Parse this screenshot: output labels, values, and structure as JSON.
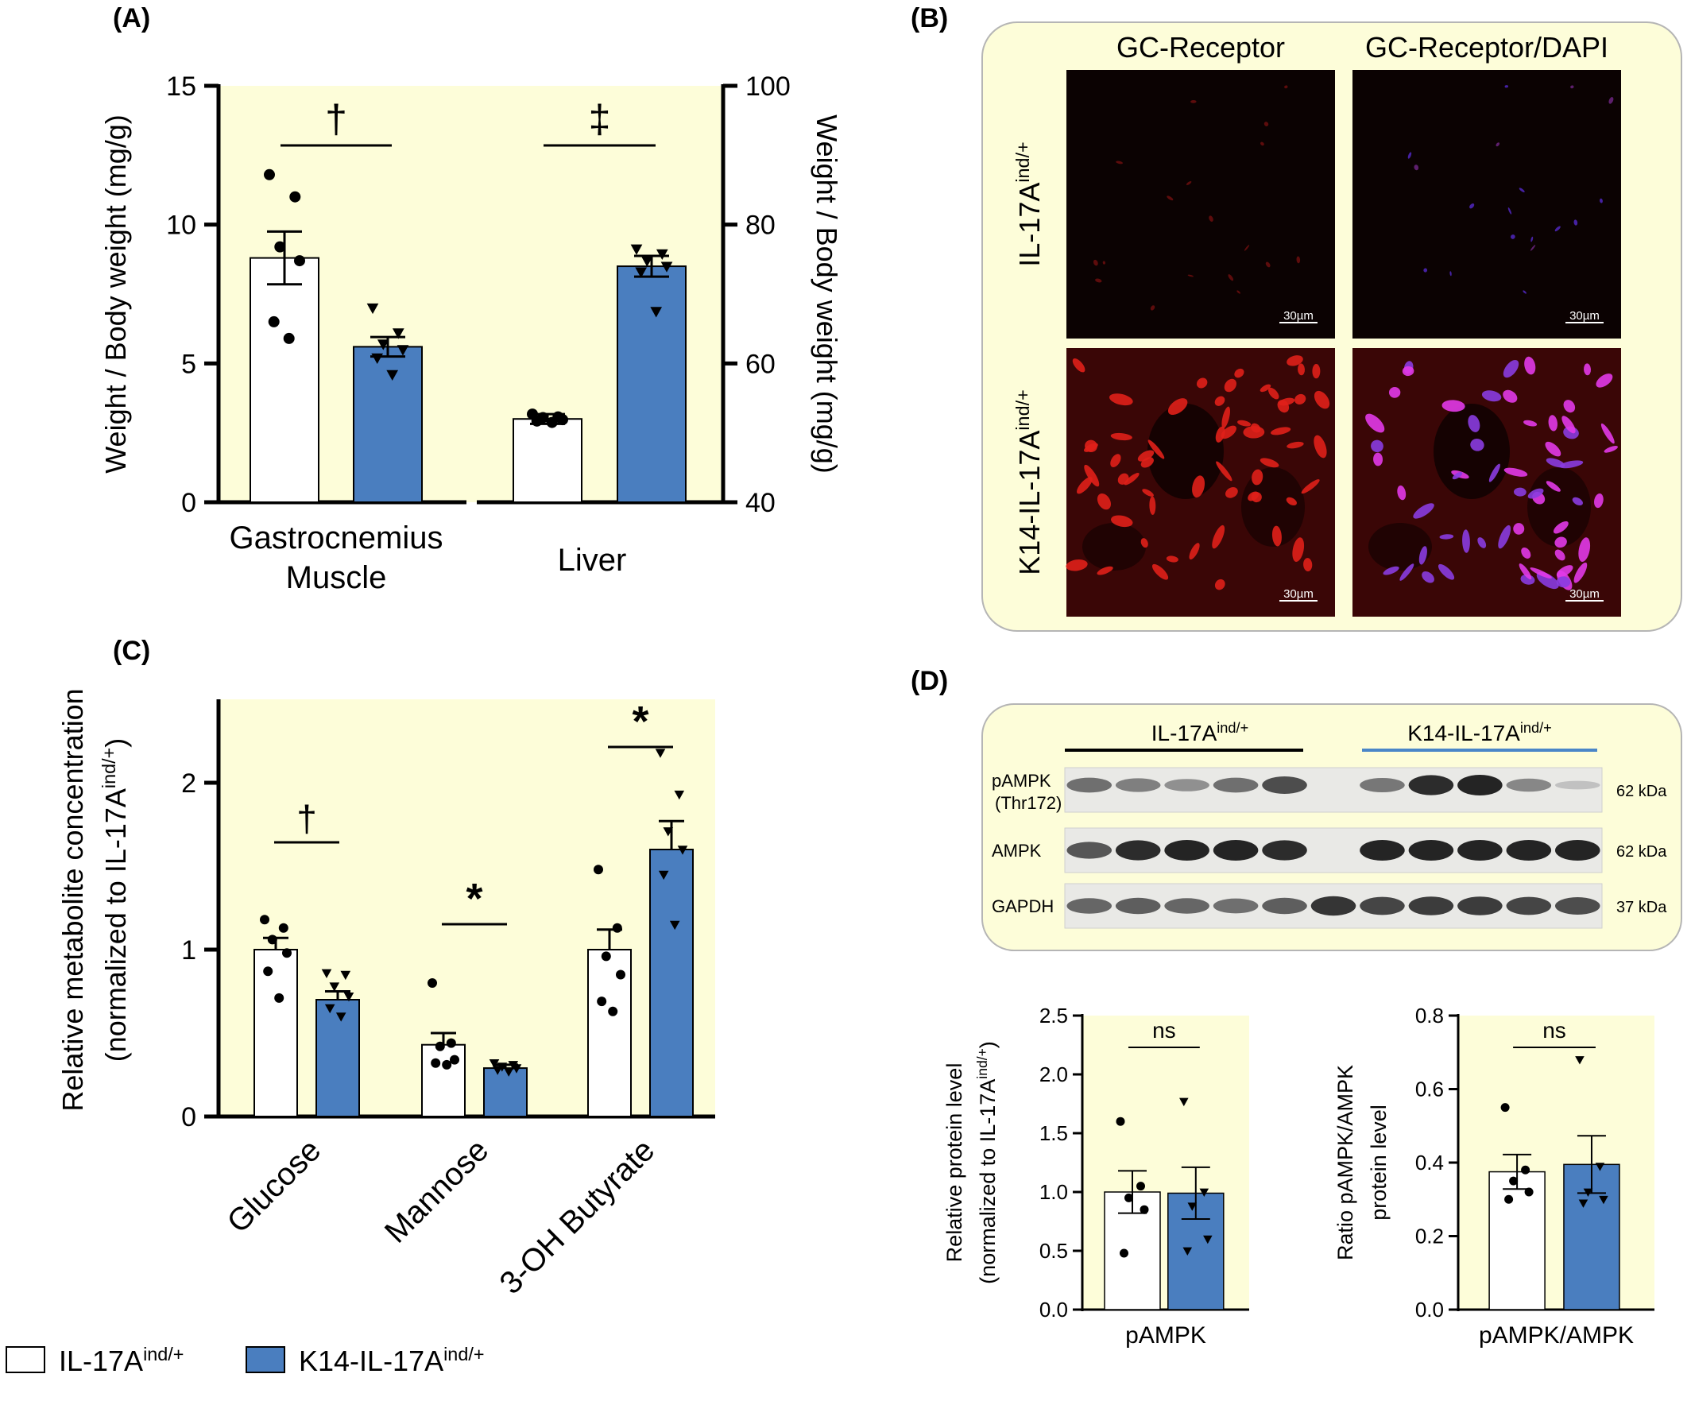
{
  "panels": {
    "a": "(A)",
    "b": "(B)",
    "c": "(C)",
    "d": "(D)"
  },
  "colors": {
    "panel_bg": "#fdfdd9",
    "blue_bar": "#4a7ebf",
    "white_bar": "#ffffff",
    "ko_line": "#000000",
    "tg_line": "#4a86c8"
  },
  "legend": [
    {
      "label": "IL-17A",
      "sup": "ind/+",
      "color": "#ffffff"
    },
    {
      "label": "K14-IL-17A",
      "sup": "ind/+",
      "color": "#4a7ebf"
    }
  ],
  "panel_b": {
    "col_titles": [
      "GC-Receptor",
      "GC-Receptor/DAPI"
    ],
    "row_labels": [
      {
        "main": "IL-17A",
        "sup": "ind/+"
      },
      {
        "main": "K14-IL-17A",
        "sup": "ind/+"
      }
    ],
    "scalebar": "30µm"
  },
  "panel_d_blot": {
    "group_labels": [
      {
        "main": "IL-17A",
        "sup": "ind/+"
      },
      {
        "main": "K14-IL-17A",
        "sup": "ind/+"
      }
    ],
    "rows": [
      {
        "label1": "pAMPK",
        "label2": "(Thr172)",
        "kda": "62 kDa",
        "bands": [
          0.55,
          0.45,
          0.35,
          0.55,
          0.75,
          0.0,
          0.5,
          0.95,
          1.0,
          0.4,
          0.05
        ]
      },
      {
        "label1": "AMPK",
        "label2": "",
        "kda": "62 kDa",
        "bands": [
          0.7,
          0.95,
          1.0,
          1.0,
          0.95,
          0.0,
          1.0,
          1.0,
          1.0,
          1.0,
          1.0
        ]
      },
      {
        "label1": "GAPDH",
        "label2": "",
        "kda": "37 kDa",
        "bands": [
          0.6,
          0.65,
          0.6,
          0.55,
          0.65,
          0.9,
          0.8,
          0.85,
          0.85,
          0.8,
          0.75
        ]
      }
    ]
  },
  "chart_data": [
    {
      "id": "A",
      "type": "bar",
      "ylabel_left": "Weight / Body weight  (mg/g)",
      "ylabel_right": "Weight / Body weight  (mg/g)",
      "ylim_left": [
        0,
        15
      ],
      "yticks_left": [
        0,
        5,
        10,
        15
      ],
      "ylim_right": [
        40,
        100
      ],
      "yticks_right": [
        40,
        60,
        80,
        100
      ],
      "categories": [
        {
          "label": [
            "Gastrocnemius",
            "Muscle"
          ],
          "axis": "left",
          "sig": "†",
          "values": [
            8.8,
            5.6
          ],
          "sem": [
            0.95,
            0.35
          ],
          "points": [
            [
              11.8,
              11.0,
              9.2,
              8.7,
              6.5,
              5.9
            ],
            [
              7.0,
              6.1,
              5.7,
              5.5,
              5.2,
              4.6
            ]
          ]
        },
        {
          "label": [
            "Liver"
          ],
          "axis": "right",
          "sig": "‡",
          "values": [
            52.0,
            74.0
          ],
          "sem": [
            0.7,
            1.5
          ],
          "points": [
            [
              52.7,
              52.3,
              52.2,
              51.9,
              51.7,
              51.5
            ],
            [
              76.5,
              75.8,
              74.8,
              74.0,
              73.2,
              67.5
            ]
          ]
        }
      ]
    },
    {
      "id": "C",
      "type": "bar",
      "ylabel": "Relative metabolite concentration",
      "ylabel2": "(normalized to IL-17A",
      "ylabel2_sup": "ind/+",
      "ylabel2_end": ")",
      "ylim": [
        0,
        2.5
      ],
      "yticks": [
        0,
        1,
        2
      ],
      "categories": [
        {
          "label": "Glucose",
          "sig": "†",
          "values": [
            1.0,
            0.7
          ],
          "sem": [
            0.07,
            0.05
          ],
          "points": [
            [
              1.18,
              1.13,
              1.06,
              0.98,
              0.87,
              0.71
            ],
            [
              0.86,
              0.85,
              0.78,
              0.72,
              0.65,
              0.6
            ]
          ]
        },
        {
          "label": "Mannose",
          "sig": "*",
          "values": [
            0.43,
            0.29
          ],
          "sem": [
            0.07,
            0.02
          ],
          "points": [
            [
              0.8,
              0.44,
              0.42,
              0.34,
              0.32,
              0.31
            ],
            [
              0.32,
              0.31,
              0.3,
              0.29,
              0.28,
              0.27
            ]
          ]
        },
        {
          "label": "3-OH Butyrate",
          "sig": "*",
          "values": [
            1.0,
            1.6
          ],
          "sem": [
            0.12,
            0.17
          ],
          "points": [
            [
              1.48,
              1.13,
              0.96,
              0.85,
              0.69,
              0.63
            ],
            [
              2.18,
              1.93,
              1.71,
              1.6,
              1.45,
              1.15
            ]
          ]
        }
      ]
    },
    {
      "id": "D1",
      "type": "bar",
      "ylabel": "Relative protein level",
      "ylabel2": "(normalized to IL-17A",
      "ylabel2_sup": "ind/+",
      "ylabel2_end": ")",
      "ylim": [
        0,
        2.5
      ],
      "yticks": [
        0.0,
        0.5,
        1.0,
        1.5,
        2.0,
        2.5
      ],
      "xlabel": "pAMPK",
      "sig": "ns",
      "values": [
        1.0,
        0.99
      ],
      "sem": [
        0.18,
        0.22
      ],
      "points": [
        [
          1.6,
          1.05,
          0.95,
          0.85,
          0.48
        ],
        [
          1.77,
          1.0,
          0.88,
          0.6,
          0.5
        ]
      ]
    },
    {
      "id": "D2",
      "type": "bar",
      "ylabel": "Ratio pAMPK/AMPK",
      "ylabel2": "protein level",
      "ylim": [
        0,
        0.8
      ],
      "yticks": [
        0.0,
        0.2,
        0.4,
        0.6,
        0.8
      ],
      "xlabel": "pAMPK/AMPK",
      "sig": "ns",
      "values": [
        0.375,
        0.395
      ],
      "sem": [
        0.047,
        0.078
      ],
      "points": [
        [
          0.55,
          0.38,
          0.35,
          0.32,
          0.3
        ],
        [
          0.68,
          0.39,
          0.32,
          0.3,
          0.29
        ]
      ]
    }
  ]
}
